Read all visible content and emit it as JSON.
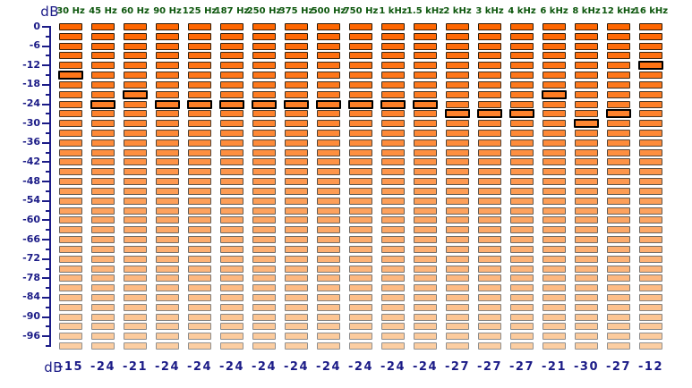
{
  "units": {
    "top": "dB",
    "bottom": "dB"
  },
  "axis": {
    "max_db": 0,
    "min_db": -99,
    "tick_step_db": 3,
    "label_step_db": 6,
    "labels": [
      "0",
      "-6",
      "-12",
      "-18",
      "-24",
      "-30",
      "-36",
      "-42",
      "-48",
      "-54",
      "-60",
      "-66",
      "-72",
      "-78",
      "-84",
      "-90",
      "-96"
    ]
  },
  "segments": {
    "count": 34,
    "db_per_segment": 3
  },
  "bands": [
    {
      "label": "30 Hz",
      "value_db": -15,
      "display": "-15"
    },
    {
      "label": "45 Hz",
      "value_db": -24,
      "display": "-24"
    },
    {
      "label": "60 Hz",
      "value_db": -21,
      "display": "-21"
    },
    {
      "label": "90 Hz",
      "value_db": -24,
      "display": "-24"
    },
    {
      "label": "125 Hz",
      "value_db": -24,
      "display": "-24"
    },
    {
      "label": "187 Hz",
      "value_db": -24,
      "display": "-24"
    },
    {
      "label": "250 Hz",
      "value_db": -24,
      "display": "-24"
    },
    {
      "label": "375 Hz",
      "value_db": -24,
      "display": "-24"
    },
    {
      "label": "500 Hz",
      "value_db": -24,
      "display": "-24"
    },
    {
      "label": "750 Hz",
      "value_db": -24,
      "display": "-24"
    },
    {
      "label": "1 kHz",
      "value_db": -24,
      "display": "-24"
    },
    {
      "label": "1.5 kHz",
      "value_db": -24,
      "display": "-24"
    },
    {
      "label": "2 kHz",
      "value_db": -27,
      "display": "-27"
    },
    {
      "label": "3 kHz",
      "value_db": -27,
      "display": "-27"
    },
    {
      "label": "4 kHz",
      "value_db": -27,
      "display": "-27"
    },
    {
      "label": "6 kHz",
      "value_db": -21,
      "display": "-21"
    },
    {
      "label": "8 kHz",
      "value_db": -30,
      "display": "-30"
    },
    {
      "label": "12 kHz",
      "value_db": -27,
      "display": "-27"
    },
    {
      "label": "16 kHz",
      "value_db": -12,
      "display": "-12"
    }
  ],
  "colors": {
    "background": "#ffffff",
    "label_navy": "#1b1b87",
    "freq_green": "#0d570d",
    "axis_navy": "#1b1b87",
    "segment_top": "#ff6600",
    "segment_bottom": "#fccea2",
    "segment_border_top": "#2e1a05",
    "segment_border_bottom": "#909090",
    "handle_border": "#000000"
  }
}
